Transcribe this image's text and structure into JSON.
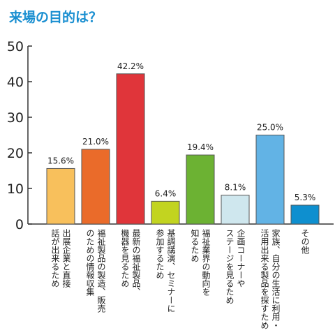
{
  "chart_data": {
    "type": "bar",
    "title": "来場の目的は？",
    "xlabel": "",
    "ylabel": "",
    "ylim": [
      0,
      50
    ],
    "yticks": [
      0,
      10,
      20,
      30,
      40,
      50
    ],
    "grid": false,
    "categories": [
      [
        "出展企業と直接",
        "話が出来るため"
      ],
      [
        "福祉製品の製造、販売",
        "のための情報収集"
      ],
      [
        "最新の福祉製品、",
        "機器を見るため"
      ],
      [
        "基調講演、セミナーに",
        "参加するため"
      ],
      [
        "福祉業界の動向を",
        "知るため"
      ],
      [
        "企画コーナーや",
        "ステージを見るため"
      ],
      [
        "家族、自分の生活に利用・",
        "活用出来る製品を探すため"
      ],
      [
        "その他"
      ]
    ],
    "values": [
      15.6,
      21.0,
      42.2,
      6.4,
      19.4,
      8.1,
      25.0,
      5.3
    ],
    "data_labels": [
      "15.6%",
      "21.0%",
      "42.2%",
      "6.4%",
      "19.4%",
      "8.1%",
      "25.0%",
      "5.3%"
    ],
    "colors": [
      "#f8c05c",
      "#ea6b2a",
      "#e0353a",
      "#c2d420",
      "#6cb233",
      "#cfe7ee",
      "#62b3e5",
      "#0e8fcf"
    ]
  }
}
